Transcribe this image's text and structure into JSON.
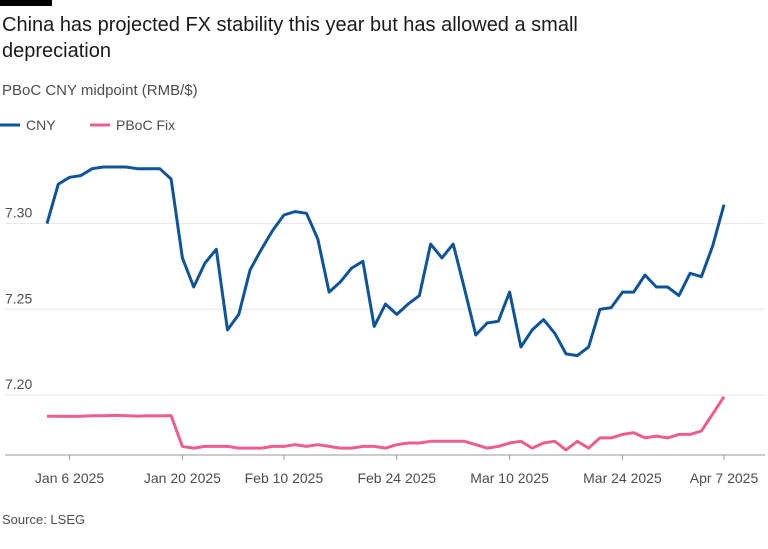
{
  "chart_data": {
    "type": "line",
    "title": "China has projected FX stability this year but has allowed a small depreciation",
    "subtitle": "PBoC CNY midpoint (RMB/$)",
    "source": "Source: LSEG",
    "categories": [
      null,
      null,
      "Jan 6 2025",
      null,
      null,
      null,
      null,
      null,
      null,
      null,
      null,
      null,
      "Jan 20 2025",
      null,
      null,
      null,
      null,
      null,
      null,
      null,
      null,
      "Feb 10 2025",
      null,
      null,
      null,
      null,
      null,
      null,
      null,
      null,
      null,
      "Feb 24 2025",
      null,
      null,
      null,
      null,
      null,
      null,
      null,
      null,
      null,
      "Mar 10 2025",
      null,
      null,
      null,
      null,
      null,
      null,
      null,
      null,
      null,
      "Mar 24 2025",
      null,
      null,
      null,
      null,
      null,
      null,
      null,
      null,
      "Apr 7 2025"
    ],
    "series": [
      {
        "name": "CNY",
        "color": "#0f5499",
        "values": [
          7.3,
          7.323,
          7.327,
          7.328,
          7.332,
          7.333,
          7.333,
          7.333,
          7.332,
          7.332,
          7.332,
          7.326,
          7.28,
          7.263,
          7.277,
          7.285,
          7.238,
          7.247,
          7.273,
          7.285,
          7.296,
          7.305,
          7.307,
          7.306,
          7.291,
          7.26,
          7.266,
          7.274,
          7.278,
          7.24,
          7.253,
          7.247,
          7.253,
          7.258,
          7.288,
          7.28,
          7.288,
          7.262,
          7.235,
          7.242,
          7.243,
          7.26,
          7.228,
          7.238,
          7.244,
          7.236,
          7.224,
          7.223,
          7.228,
          7.25,
          7.251,
          7.26,
          7.26,
          7.27,
          7.263,
          7.263,
          7.258,
          7.271,
          7.269,
          7.287,
          7.311
        ]
      },
      {
        "name": "PBoC Fix",
        "color": "#eb5e8d",
        "values": [
          7.1876,
          7.1876,
          7.1875,
          7.1876,
          7.1879,
          7.1879,
          7.1881,
          7.1879,
          7.1877,
          7.1879,
          7.1878,
          7.188,
          7.17,
          7.169,
          7.17,
          7.17,
          7.17,
          7.169,
          7.169,
          7.169,
          7.17,
          7.17,
          7.171,
          7.17,
          7.171,
          7.17,
          7.169,
          7.169,
          7.17,
          7.17,
          7.169,
          7.171,
          7.172,
          7.172,
          7.173,
          7.173,
          7.173,
          7.173,
          7.171,
          7.169,
          7.17,
          7.172,
          7.173,
          7.169,
          7.172,
          7.173,
          7.168,
          7.173,
          7.169,
          7.175,
          7.175,
          7.177,
          7.178,
          7.175,
          7.176,
          7.175,
          7.177,
          7.177,
          7.179,
          7.189,
          7.199
        ]
      }
    ],
    "ylim": [
      7.165,
      7.34
    ],
    "yticks": [
      {
        "value": 7.2,
        "label": "7.20"
      },
      {
        "value": 7.25,
        "label": "7.25"
      },
      {
        "value": 7.3,
        "label": "7.30"
      }
    ],
    "grid": true
  }
}
